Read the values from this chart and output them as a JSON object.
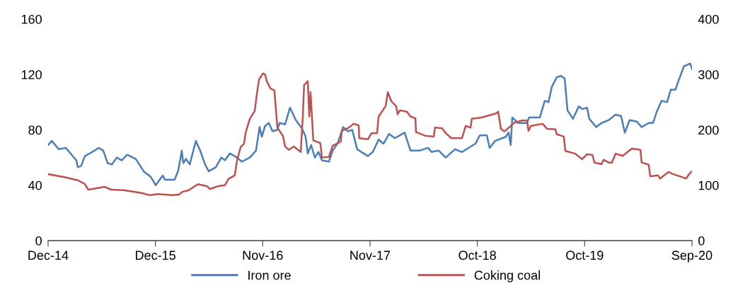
{
  "chart_data": {
    "type": "line",
    "legend": "bottom",
    "grid": false,
    "xlim": [
      "2014-12-31",
      "2020-09-30"
    ],
    "xticks": [
      {
        "value": "2014-12-31",
        "label": "Dec-14"
      },
      {
        "value": "2015-12-16",
        "label": "Dec-15"
      },
      {
        "value": "2016-11-30",
        "label": "Nov-16"
      },
      {
        "value": "2017-11-15",
        "label": "Nov-17"
      },
      {
        "value": "2018-10-31",
        "label": "Oct-18"
      },
      {
        "value": "2019-10-16",
        "label": "Oct-19"
      },
      {
        "value": "2020-09-30",
        "label": "Sep-20"
      }
    ],
    "ylim": [
      0,
      160
    ],
    "yticks": [
      0,
      40,
      80,
      120,
      160
    ],
    "y2lim": [
      0,
      400
    ],
    "y2ticks": [
      0,
      100,
      200,
      300,
      400
    ],
    "series": [
      {
        "name": "Iron ore",
        "color": "#4a7ebb",
        "axis": "y",
        "x": [
          "2014-12-31",
          "2015-01-12",
          "2015-02-04",
          "2015-02-27",
          "2015-04-02",
          "2015-04-07",
          "2015-04-18",
          "2015-04-30",
          "2015-05-16",
          "2015-06-15",
          "2015-06-29",
          "2015-07-13",
          "2015-07-27",
          "2015-08-12",
          "2015-08-28",
          "2015-09-15",
          "2015-10-13",
          "2015-11-08",
          "2015-12-01",
          "2015-12-17",
          "2016-01-09",
          "2016-01-16",
          "2016-02-17",
          "2016-02-29",
          "2016-03-11",
          "2016-03-16",
          "2016-03-25",
          "2016-04-06",
          "2016-04-26",
          "2016-05-10",
          "2016-05-26",
          "2016-06-07",
          "2016-06-30",
          "2016-07-18",
          "2016-07-30",
          "2016-08-15",
          "2016-09-07",
          "2016-09-23",
          "2016-10-19",
          "2016-11-08",
          "2016-11-20",
          "2016-11-27",
          "2016-12-08",
          "2016-12-20",
          "2017-01-01",
          "2017-01-17",
          "2017-01-24",
          "2017-02-11",
          "2017-02-27",
          "2017-03-18",
          "2017-04-07",
          "2017-04-19",
          "2017-04-26",
          "2017-05-07",
          "2017-05-19",
          "2017-05-31",
          "2017-06-11",
          "2017-07-04",
          "2017-07-16",
          "2017-08-01",
          "2017-08-19",
          "2017-09-04",
          "2017-09-18",
          "2017-10-04",
          "2017-11-08",
          "2017-11-24",
          "2017-12-13",
          "2017-12-29",
          "2018-01-16",
          "2018-02-04",
          "2018-03-08",
          "2018-03-27",
          "2018-04-26",
          "2018-05-23",
          "2018-06-04",
          "2018-06-27",
          "2018-07-20",
          "2018-08-19",
          "2018-09-11",
          "2018-10-25",
          "2018-11-08",
          "2018-12-01",
          "2018-12-10",
          "2018-12-28",
          "2019-02-01",
          "2019-02-10",
          "2019-02-17",
          "2019-02-22",
          "2019-03-12",
          "2019-04-11",
          "2019-04-18",
          "2019-05-23",
          "2019-06-08",
          "2019-06-20",
          "2019-07-01",
          "2019-07-17",
          "2019-07-31",
          "2019-08-12",
          "2019-08-21",
          "2019-09-08",
          "2019-09-27",
          "2019-10-08",
          "2019-10-24",
          "2019-10-31",
          "2019-11-23",
          "2019-12-10",
          "2020-01-02",
          "2020-01-25",
          "2020-02-12",
          "2020-02-24",
          "2020-03-11",
          "2020-04-03",
          "2020-04-19",
          "2020-05-12",
          "2020-05-26",
          "2020-06-07",
          "2020-06-23",
          "2020-07-11",
          "2020-07-23",
          "2020-08-07",
          "2020-08-18",
          "2020-09-04",
          "2020-09-15",
          "2020-09-24",
          "2020-09-30"
        ],
        "values": [
          69,
          72,
          66,
          67,
          58,
          53,
          54,
          61,
          63,
          67,
          65,
          56,
          55,
          60,
          58,
          62,
          59,
          50,
          46,
          40,
          47,
          44,
          44,
          51,
          65,
          56,
          59,
          55,
          72,
          65,
          55,
          50,
          53,
          60,
          58,
          63,
          60,
          57,
          60,
          65,
          82,
          75,
          83,
          85,
          79,
          80,
          85,
          84,
          96,
          87,
          81,
          75,
          63,
          69,
          60,
          64,
          58,
          57,
          65,
          70,
          82,
          79,
          80,
          66,
          61,
          64,
          73,
          70,
          77,
          74,
          78,
          65,
          65,
          67,
          64,
          65,
          60,
          66,
          64,
          70,
          76,
          76,
          67,
          72,
          75,
          78,
          69,
          89,
          85,
          85,
          89,
          89,
          101,
          100,
          111,
          118,
          119,
          117,
          94,
          88,
          97,
          95,
          96,
          88,
          82,
          85,
          87,
          91,
          90,
          78,
          87,
          86,
          82,
          85,
          85,
          93,
          101,
          100,
          109,
          109,
          116,
          126,
          127,
          128,
          124
        ]
      },
      {
        "name": "Coking coal",
        "color": "#c0504d",
        "axis": "y2",
        "x": [
          "2014-12-31",
          "2015-02-27",
          "2015-04-07",
          "2015-04-30",
          "2015-05-11",
          "2015-07-04",
          "2015-07-24",
          "2015-09-04",
          "2015-11-01",
          "2015-11-28",
          "2015-12-24",
          "2016-02-08",
          "2016-03-02",
          "2016-03-13",
          "2016-04-03",
          "2016-05-03",
          "2016-06-02",
          "2016-06-11",
          "2016-07-05",
          "2016-07-30",
          "2016-08-10",
          "2016-08-31",
          "2016-09-07",
          "2016-09-19",
          "2016-09-30",
          "2016-10-05",
          "2016-10-19",
          "2016-11-04",
          "2016-11-11",
          "2016-11-18",
          "2016-12-01",
          "2016-12-08",
          "2016-12-13",
          "2016-12-25",
          "2017-01-07",
          "2017-01-17",
          "2017-02-04",
          "2017-02-11",
          "2017-02-23",
          "2017-03-11",
          "2017-04-03",
          "2017-04-10",
          "2017-04-14",
          "2017-04-26",
          "2017-05-01",
          "2017-05-05",
          "2017-05-14",
          "2017-06-06",
          "2017-06-11",
          "2017-07-04",
          "2017-07-16",
          "2017-08-12",
          "2017-08-15",
          "2017-09-07",
          "2017-09-23",
          "2017-10-09",
          "2017-10-11",
          "2017-11-08",
          "2017-11-20",
          "2017-12-08",
          "2017-12-13",
          "2018-01-05",
          "2018-01-12",
          "2018-01-23",
          "2018-02-08",
          "2018-02-13",
          "2018-02-20",
          "2018-03-15",
          "2018-03-27",
          "2018-04-12",
          "2018-04-14",
          "2018-05-16",
          "2018-06-11",
          "2018-06-15",
          "2018-07-08",
          "2018-07-20",
          "2018-08-07",
          "2018-09-11",
          "2018-09-23",
          "2018-10-09",
          "2018-10-13",
          "2018-11-12",
          "2019-01-02",
          "2019-01-07",
          "2019-01-16",
          "2019-01-27",
          "2019-02-17",
          "2019-03-01",
          "2019-03-26",
          "2019-04-11",
          "2019-04-16",
          "2019-04-23",
          "2019-06-01",
          "2019-06-15",
          "2019-07-13",
          "2019-07-17",
          "2019-08-09",
          "2019-08-14",
          "2019-09-15",
          "2019-10-08",
          "2019-10-24",
          "2019-11-10",
          "2019-11-17",
          "2019-12-10",
          "2019-12-17",
          "2020-01-02",
          "2020-01-13",
          "2020-01-25",
          "2020-02-17",
          "2020-03-18",
          "2020-04-15",
          "2020-04-19",
          "2020-05-12",
          "2020-05-17",
          "2020-06-11",
          "2020-06-18",
          "2020-07-16",
          "2020-07-27",
          "2020-09-11",
          "2020-09-22",
          "2020-09-30"
        ],
        "values": [
          120,
          114,
          109,
          102,
          92,
          97,
          92,
          91,
          86,
          82,
          84,
          82,
          83,
          88,
          91,
          102,
          98,
          93,
          98,
          100,
          111,
          118,
          144,
          169,
          175,
          194,
          220,
          234,
          265,
          291,
          302,
          300,
          288,
          275,
          271,
          204,
          189,
          170,
          164,
          170,
          160,
          226,
          281,
          288,
          224,
          268,
          181,
          176,
          150,
          151,
          171,
          179,
          198,
          204,
          211,
          208,
          185,
          183,
          194,
          194,
          224,
          243,
          268,
          252,
          243,
          228,
          235,
          233,
          224,
          221,
          196,
          189,
          188,
          204,
          203,
          194,
          185,
          185,
          207,
          204,
          220,
          222,
          230,
          233,
          202,
          197,
          207,
          213,
          217,
          217,
          198,
          207,
          211,
          202,
          201,
          192,
          188,
          162,
          157,
          147,
          156,
          155,
          141,
          138,
          146,
          141,
          141,
          157,
          153,
          166,
          164,
          141,
          137,
          116,
          118,
          112,
          124,
          121,
          112,
          121,
          125
        ]
      }
    ]
  }
}
